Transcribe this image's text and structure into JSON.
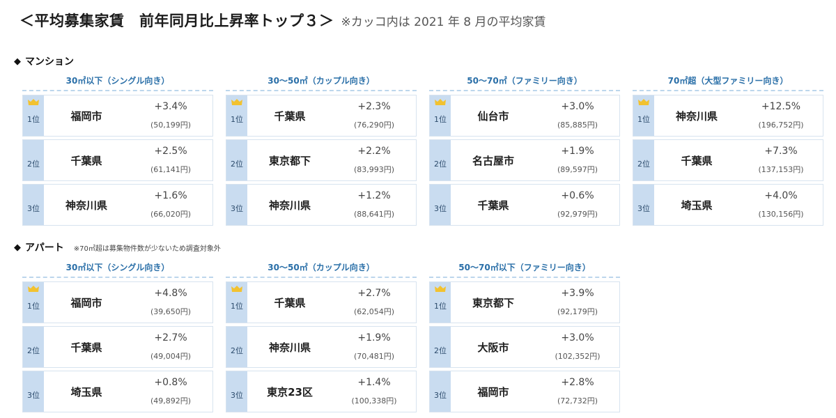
{
  "title": {
    "main": "＜平均募集家賃　前年同月比上昇率トップ３＞",
    "note": "※カッコ内は 2021 年 8 月の平均家賃"
  },
  "mansion": {
    "label": "マンション",
    "blocks": [
      {
        "header": "30㎡以下（シングル向き）",
        "rows": [
          {
            "rank": "1位",
            "city": "福岡市",
            "rate": "+3.4%",
            "rent": "(50,199円)"
          },
          {
            "rank": "2位",
            "city": "千葉県",
            "rate": "+2.5%",
            "rent": "(61,141円)"
          },
          {
            "rank": "3位",
            "city": "神奈川県",
            "rate": "+1.6%",
            "rent": "(66,020円)"
          }
        ]
      },
      {
        "header": "30～50㎡（カップル向き）",
        "rows": [
          {
            "rank": "1位",
            "city": "千葉県",
            "rate": "+2.3%",
            "rent": "(76,290円)"
          },
          {
            "rank": "2位",
            "city": "東京都下",
            "rate": "+2.2%",
            "rent": "(83,993円)"
          },
          {
            "rank": "3位",
            "city": "神奈川県",
            "rate": "+1.2%",
            "rent": "(88,641円)"
          }
        ]
      },
      {
        "header": "50～70㎡（ファミリー向き）",
        "rows": [
          {
            "rank": "1位",
            "city": "仙台市",
            "rate": "+3.0%",
            "rent": "(85,885円)"
          },
          {
            "rank": "2位",
            "city": "名古屋市",
            "rate": "+1.9%",
            "rent": "(89,597円)"
          },
          {
            "rank": "3位",
            "city": "千葉県",
            "rate": "+0.6%",
            "rent": "(92,979円)"
          }
        ]
      },
      {
        "header": "70㎡超（大型ファミリー向き）",
        "rows": [
          {
            "rank": "1位",
            "city": "神奈川県",
            "rate": "+12.5%",
            "rent": "(196,752円)"
          },
          {
            "rank": "2位",
            "city": "千葉県",
            "rate": "+7.3%",
            "rent": "(137,153円)"
          },
          {
            "rank": "3位",
            "city": "埼玉県",
            "rate": "+4.0%",
            "rent": "(130,156円)"
          }
        ]
      }
    ]
  },
  "apart": {
    "label": "アパート",
    "note": "※70㎡超は募集物件数が少ないため調査対象外",
    "blocks": [
      {
        "header": "30㎡以下（シングル向き）",
        "rows": [
          {
            "rank": "1位",
            "city": "福岡市",
            "rate": "+4.8%",
            "rent": "(39,650円)"
          },
          {
            "rank": "2位",
            "city": "千葉県",
            "rate": "+2.7%",
            "rent": "(49,004円)"
          },
          {
            "rank": "3位",
            "city": "埼玉県",
            "rate": "+0.8%",
            "rent": "(49,892円)"
          }
        ]
      },
      {
        "header": "30～50㎡（カップル向き）",
        "rows": [
          {
            "rank": "1位",
            "city": "千葉県",
            "rate": "+2.7%",
            "rent": "(62,054円)"
          },
          {
            "rank": "2位",
            "city": "神奈川県",
            "rate": "+1.9%",
            "rent": "(70,481円)"
          },
          {
            "rank": "3位",
            "city": "東京23区",
            "rate": "+1.4%",
            "rent": "(100,338円)"
          }
        ]
      },
      {
        "header": "50～70㎡以下（ファミリー向き）",
        "rows": [
          {
            "rank": "1位",
            "city": "東京都下",
            "rate": "+3.9%",
            "rent": "(92,179円)"
          },
          {
            "rank": "2位",
            "city": "大阪市",
            "rate": "+3.0%",
            "rent": "(102,352円)"
          },
          {
            "rank": "3位",
            "city": "福岡市",
            "rate": "+2.8%",
            "rent": "(72,732円)"
          }
        ]
      }
    ]
  },
  "colors": {
    "header_text": "#2a6fa8",
    "rank_bg": "#c9dcf0",
    "crown": "#f2c230"
  },
  "icons": {
    "rank1": "crown-icon",
    "section": "diamond-icon"
  }
}
